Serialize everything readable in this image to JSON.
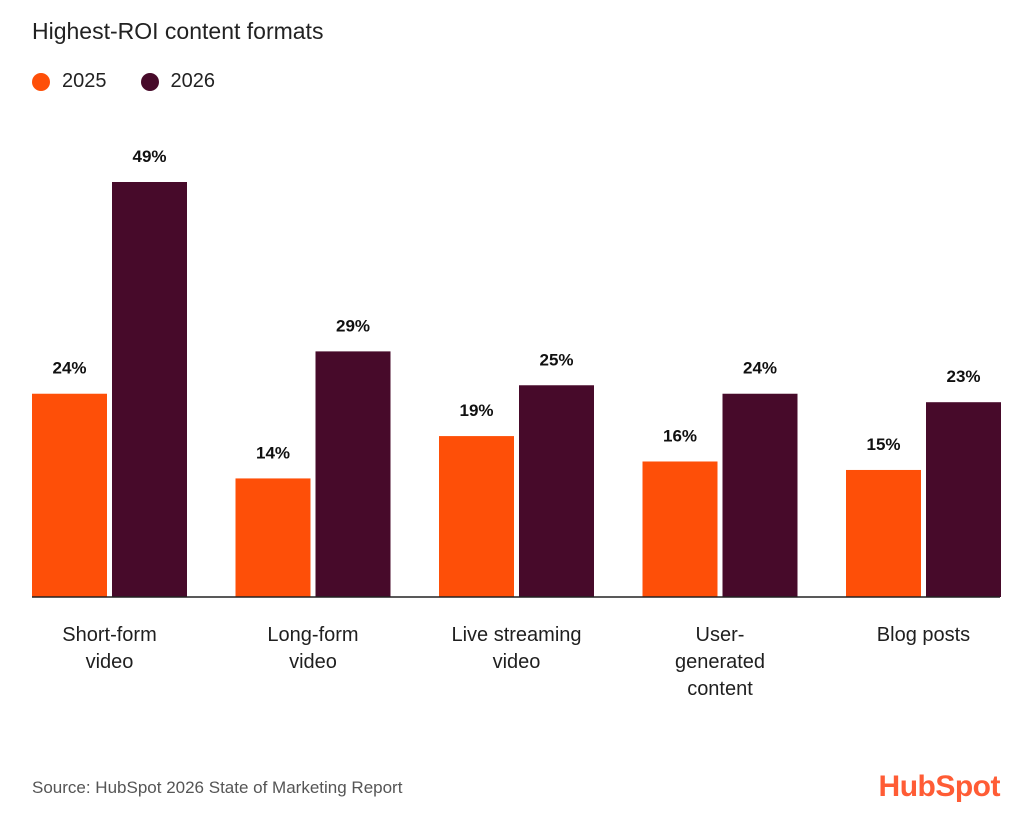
{
  "title": "Highest-ROI content formats",
  "source": "Source: HubSpot 2026 State of Marketing Report",
  "logo_text": "HubSpot",
  "colors": {
    "series_2025": "#fe4f08",
    "series_2026": "#470a2a",
    "axis": "#222222"
  },
  "chart_data": {
    "type": "bar",
    "title": "Highest-ROI content formats",
    "categories": [
      [
        "Short-form",
        "video"
      ],
      [
        "Long-form",
        "video"
      ],
      [
        "Live streaming",
        "video"
      ],
      [
        "User-",
        "generated",
        "content"
      ],
      [
        "Blog posts"
      ]
    ],
    "series": [
      {
        "name": "2025",
        "values": [
          24,
          14,
          19,
          16,
          15
        ],
        "labels": [
          "24%",
          "14%",
          "19%",
          "16%",
          "15%"
        ]
      },
      {
        "name": "2026",
        "values": [
          49,
          29,
          25,
          24,
          23
        ],
        "labels": [
          "49%",
          "29%",
          "25%",
          "24%",
          "23%"
        ]
      }
    ],
    "ylim": [
      0,
      49
    ],
    "grid": false,
    "legend_position": "top-left"
  }
}
